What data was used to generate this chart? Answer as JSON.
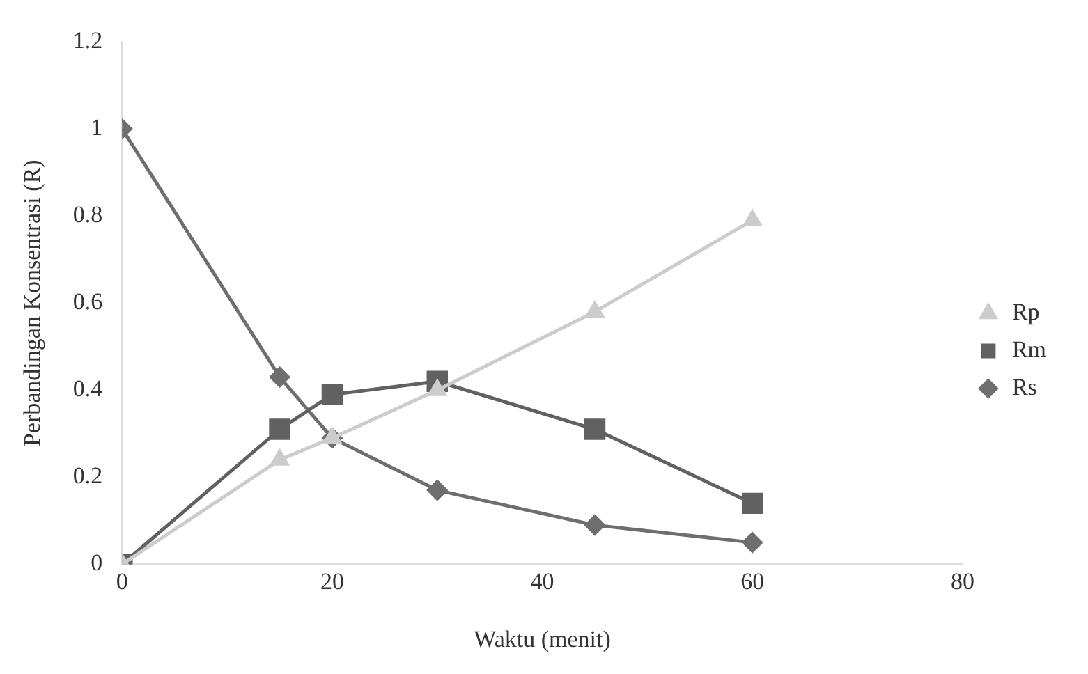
{
  "chart_data": {
    "type": "line",
    "xlabel": "Waktu (menit)",
    "ylabel": "Perbandingan Konsentrasi (R)",
    "xlim": [
      0,
      80
    ],
    "xticks": [
      0,
      20,
      40,
      60,
      80
    ],
    "ylim": [
      0,
      1.2
    ],
    "yticks": [
      0,
      0.2,
      0.4,
      0.6,
      0.8,
      1,
      1.2
    ],
    "grid": false,
    "legend": "right",
    "line_style": "solid",
    "series": [
      {
        "name": "Rs",
        "color": "#6e6e6e",
        "marker": "diamond",
        "x": [
          0,
          15,
          20,
          30,
          45,
          60
        ],
        "values": [
          1,
          0.43,
          0.29,
          0.17,
          0.09,
          0.05
        ]
      },
      {
        "name": "Rm",
        "color": "#616161",
        "marker": "square",
        "x": [
          0,
          15,
          20,
          30,
          45,
          60
        ],
        "values": [
          0,
          0.31,
          0.39,
          0.42,
          0.31,
          0.14
        ]
      },
      {
        "name": "Rp",
        "color": "#cccccc",
        "marker": "triangle",
        "x": [
          0,
          15,
          20,
          30,
          45,
          60
        ],
        "values": [
          0,
          0.24,
          0.29,
          0.4,
          0.58,
          0.79
        ]
      }
    ]
  }
}
